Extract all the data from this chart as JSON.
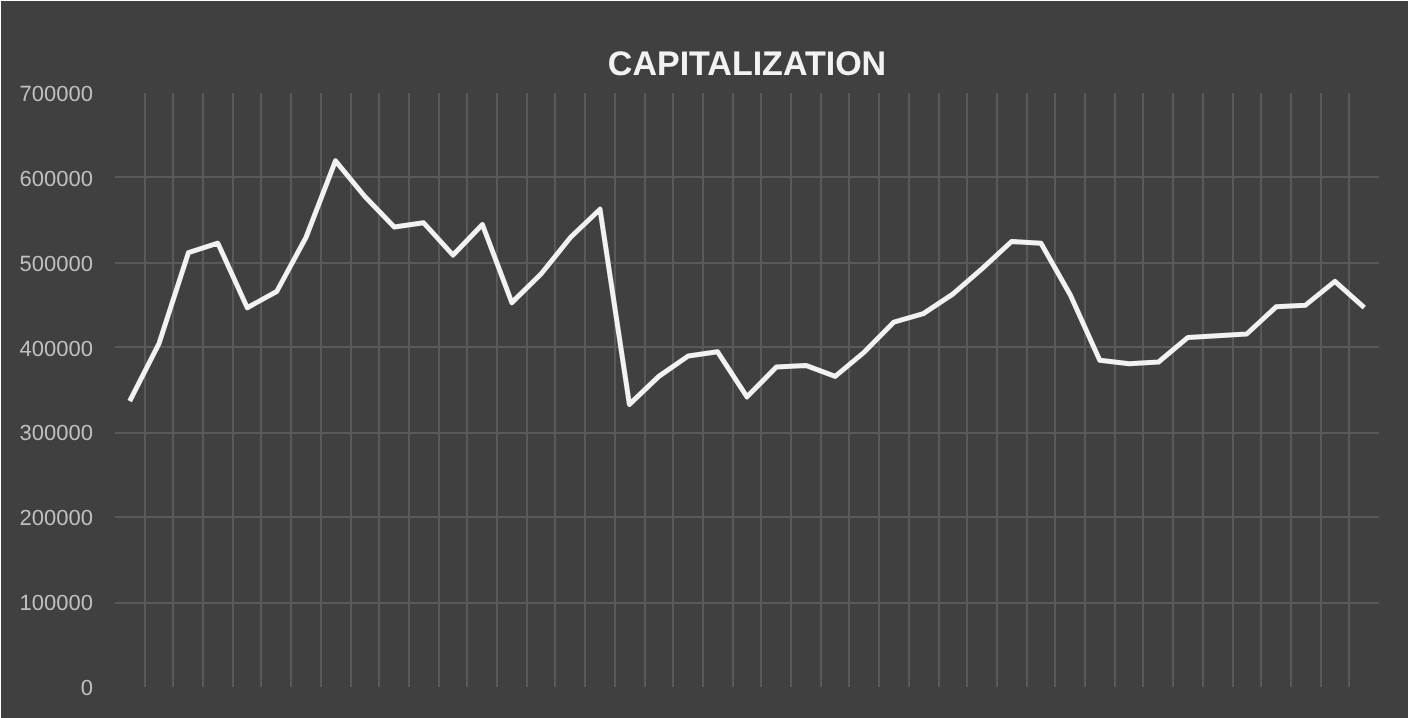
{
  "chart_data": {
    "type": "line",
    "title": "CAPITALIZATION",
    "categories": [
      null,
      null,
      null,
      null,
      null,
      null,
      null,
      null,
      null,
      null,
      null,
      null,
      null,
      null,
      null,
      null,
      null,
      null,
      null,
      null,
      null,
      null,
      null,
      null,
      null,
      null,
      null,
      null,
      null,
      null,
      null,
      null,
      null,
      null,
      null,
      null,
      null,
      null,
      null,
      null,
      null,
      null,
      null
    ],
    "series": [
      {
        "color": "#f2f2f2",
        "values": [
          337000,
          405000,
          512000,
          523000,
          447000,
          466000,
          530000,
          620000,
          578000,
          542000,
          547000,
          509000,
          545000,
          453000,
          487000,
          530000,
          563000,
          333000,
          366000,
          390000,
          395000,
          342000,
          377000,
          379000,
          366000,
          395000,
          430000,
          440000,
          463000,
          493000,
          525000,
          523000,
          462000,
          385000,
          381000,
          383000,
          412000,
          414000,
          416000,
          448000,
          450000,
          478000,
          447000
        ]
      }
    ],
    "ylim": [
      0,
      700000
    ],
    "yticks": [
      0,
      100000,
      200000,
      300000,
      400000,
      500000,
      600000,
      700000
    ],
    "grid": true,
    "tick_labels": "y",
    "marker": "none",
    "line_style": "solid"
  }
}
